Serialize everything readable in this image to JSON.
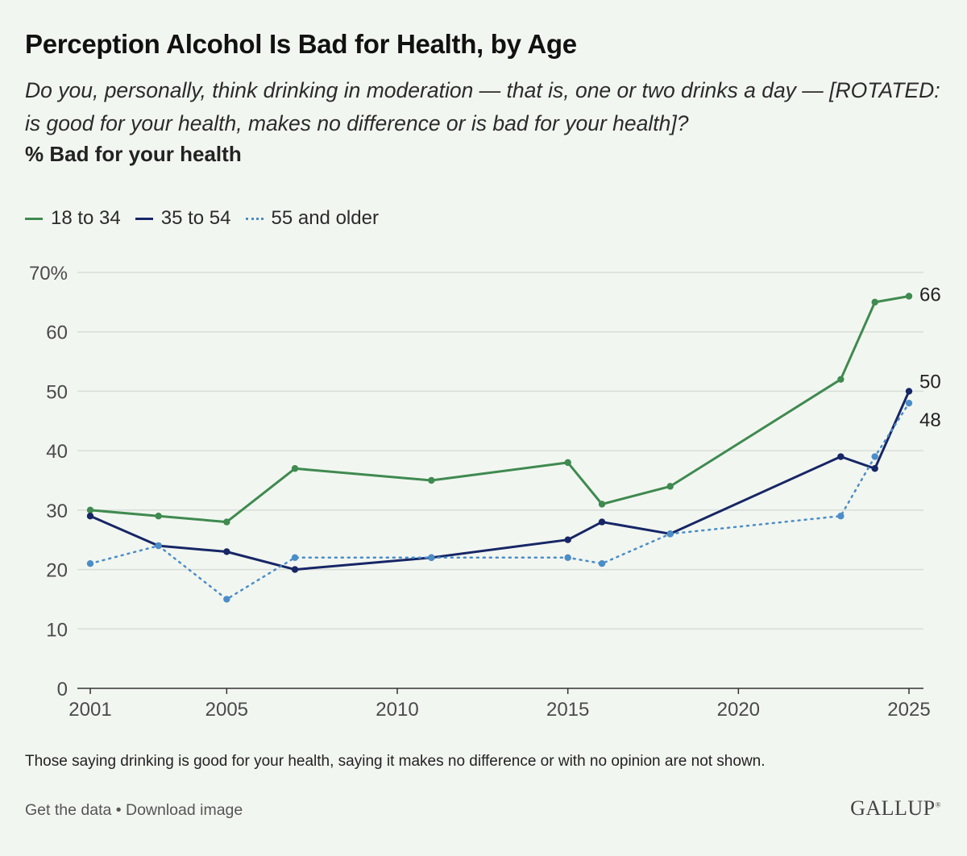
{
  "header": {
    "title": "Perception Alcohol Is Bad for Health, by Age",
    "subtitle": "Do you, personally, think drinking in moderation — that is, one or two drinks a day — [ROTATED: is good for your health, makes no difference or is bad for your health]?",
    "measure": "% Bad for your health"
  },
  "chart_data": {
    "type": "line",
    "title": "Perception Alcohol Is Bad for Health, by Age",
    "ylabel": "",
    "xlabel": "",
    "xlim": [
      2001,
      2025
    ],
    "ylim": [
      0,
      70
    ],
    "x_ticks": [
      "2001",
      "2005",
      "2010",
      "2015",
      "2020",
      "2025"
    ],
    "y_ticks": [
      "0",
      "10",
      "20",
      "30",
      "40",
      "50",
      "60",
      "70%"
    ],
    "grid": true,
    "legend_position": "top-left",
    "series": [
      {
        "name": "18 to 34",
        "color": "#3f8a50",
        "style": "solid",
        "x": [
          2001,
          2003,
          2005,
          2007,
          2011,
          2015,
          2016,
          2018,
          2023,
          2024,
          2025
        ],
        "values": [
          30,
          29,
          28,
          37,
          35,
          38,
          31,
          34,
          52,
          65,
          66
        ],
        "end_label": "66"
      },
      {
        "name": "35 to 54",
        "color": "#162666",
        "style": "solid",
        "x": [
          2001,
          2003,
          2005,
          2007,
          2011,
          2015,
          2016,
          2018,
          2023,
          2024,
          2025
        ],
        "values": [
          29,
          24,
          23,
          20,
          22,
          25,
          28,
          26,
          39,
          37,
          50
        ],
        "end_label": "50"
      },
      {
        "name": "55 and older",
        "color": "#4b8dc8",
        "style": "dotted",
        "x": [
          2001,
          2003,
          2005,
          2007,
          2011,
          2015,
          2016,
          2018,
          2023,
          2024,
          2025
        ],
        "values": [
          21,
          24,
          15,
          22,
          22,
          22,
          21,
          26,
          29,
          39,
          48
        ],
        "end_label": "48"
      }
    ]
  },
  "footer": {
    "note": "Those saying drinking is good for your health, saying it makes no difference or with no opinion are not shown.",
    "get_data": "Get the data",
    "separator": "•",
    "download": "Download image",
    "logo": "GALLUP",
    "logo_mark": "®"
  }
}
